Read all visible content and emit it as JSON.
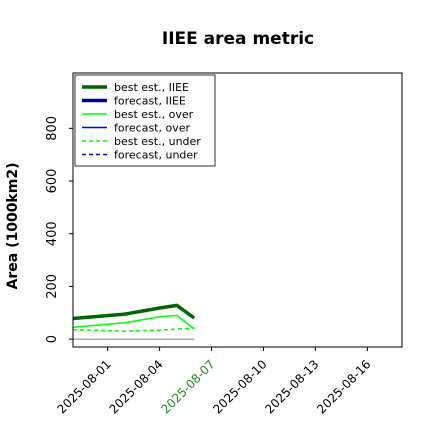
{
  "chart_data": {
    "type": "line",
    "title": "IIEE area metric",
    "xlabel": "",
    "ylabel": "Area (1000km2)",
    "ylim": [
      -30,
      1010
    ],
    "xlim": [
      "2025-07-30",
      "2025-08-18"
    ],
    "yticks": [
      0,
      200,
      400,
      600,
      800
    ],
    "xticks": [
      {
        "date": "2025-08-01",
        "label": "2025-08-01",
        "color": "#000000"
      },
      {
        "date": "2025-08-04",
        "label": "2025-08-04",
        "color": "#000000"
      },
      {
        "date": "2025-08-07",
        "label": "2025-08-07",
        "color": "#228b22"
      },
      {
        "date": "2025-08-10",
        "label": "2025-08-10",
        "color": "#000000"
      },
      {
        "date": "2025-08-13",
        "label": "2025-08-13",
        "color": "#000000"
      },
      {
        "date": "2025-08-16",
        "label": "2025-08-16",
        "color": "#000000"
      }
    ],
    "legend_position": "upper left",
    "grid": false,
    "series": [
      {
        "name": "best est., IIEE",
        "color": "#006400",
        "style": "solid",
        "width": 3.5,
        "points": [
          [
            "2025-07-30",
            78
          ],
          [
            "2025-08-02",
            95
          ],
          [
            "2025-08-04",
            118
          ],
          [
            "2025-08-05",
            128
          ],
          [
            "2025-08-06",
            80
          ]
        ]
      },
      {
        "name": "forecast, IIEE",
        "color": "#00008b",
        "style": "solid",
        "width": 3.5,
        "points": []
      },
      {
        "name": "best est., over",
        "color": "#00ff00",
        "style": "solid",
        "width": 1.5,
        "points": [
          [
            "2025-07-30",
            45
          ],
          [
            "2025-08-02",
            62
          ],
          [
            "2025-08-04",
            85
          ],
          [
            "2025-08-05",
            90
          ],
          [
            "2025-08-06",
            38
          ]
        ]
      },
      {
        "name": "forecast, over",
        "color": "#0000ff",
        "style": "solid",
        "width": 1.5,
        "points": []
      },
      {
        "name": "best est., under",
        "color": "#00ff00",
        "style": "dashed",
        "width": 1.5,
        "points": [
          [
            "2025-07-30",
            36
          ],
          [
            "2025-08-02",
            30
          ],
          [
            "2025-08-04",
            34
          ],
          [
            "2025-08-05",
            38
          ],
          [
            "2025-08-06",
            42
          ]
        ]
      },
      {
        "name": "forecast, under",
        "color": "#0000ff",
        "style": "dashed",
        "width": 1.5,
        "points": []
      },
      {
        "name": "",
        "color": "#808080",
        "style": "solid",
        "width": 1,
        "points": [
          [
            "2025-07-30",
            0
          ],
          [
            "2025-08-06",
            0
          ]
        ]
      }
    ]
  }
}
